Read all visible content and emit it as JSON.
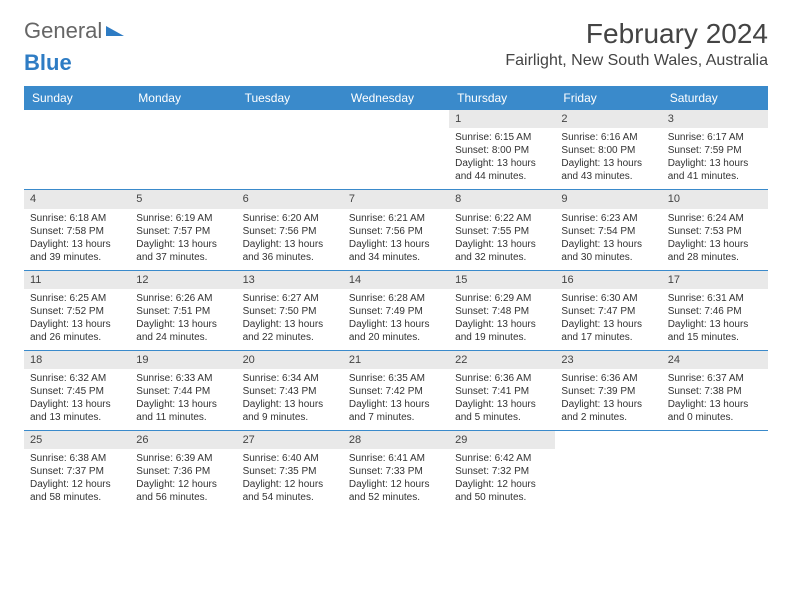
{
  "logo": {
    "text1": "General",
    "text2": "Blue"
  },
  "title": "February 2024",
  "location": "Fairlight, New South Wales, Australia",
  "colors": {
    "header_bg": "#3a8acb",
    "header_text": "#ffffff",
    "daynum_bg": "#e9e9e9",
    "rule": "#3a8acb",
    "logo_gray": "#666666",
    "logo_blue": "#2e7cc4",
    "text": "#333333"
  },
  "typography": {
    "title_fontsize": 28,
    "location_fontsize": 16,
    "dayheader_fontsize": 12,
    "cell_fontsize": 10
  },
  "day_labels": [
    "Sunday",
    "Monday",
    "Tuesday",
    "Wednesday",
    "Thursday",
    "Friday",
    "Saturday"
  ],
  "weeks": [
    [
      {
        "empty": true
      },
      {
        "empty": true
      },
      {
        "empty": true
      },
      {
        "empty": true
      },
      {
        "d": "1",
        "sr": "6:15 AM",
        "ss": "8:00 PM",
        "dl": "13 hours and 44 minutes."
      },
      {
        "d": "2",
        "sr": "6:16 AM",
        "ss": "8:00 PM",
        "dl": "13 hours and 43 minutes."
      },
      {
        "d": "3",
        "sr": "6:17 AM",
        "ss": "7:59 PM",
        "dl": "13 hours and 41 minutes."
      }
    ],
    [
      {
        "d": "4",
        "sr": "6:18 AM",
        "ss": "7:58 PM",
        "dl": "13 hours and 39 minutes."
      },
      {
        "d": "5",
        "sr": "6:19 AM",
        "ss": "7:57 PM",
        "dl": "13 hours and 37 minutes."
      },
      {
        "d": "6",
        "sr": "6:20 AM",
        "ss": "7:56 PM",
        "dl": "13 hours and 36 minutes."
      },
      {
        "d": "7",
        "sr": "6:21 AM",
        "ss": "7:56 PM",
        "dl": "13 hours and 34 minutes."
      },
      {
        "d": "8",
        "sr": "6:22 AM",
        "ss": "7:55 PM",
        "dl": "13 hours and 32 minutes."
      },
      {
        "d": "9",
        "sr": "6:23 AM",
        "ss": "7:54 PM",
        "dl": "13 hours and 30 minutes."
      },
      {
        "d": "10",
        "sr": "6:24 AM",
        "ss": "7:53 PM",
        "dl": "13 hours and 28 minutes."
      }
    ],
    [
      {
        "d": "11",
        "sr": "6:25 AM",
        "ss": "7:52 PM",
        "dl": "13 hours and 26 minutes."
      },
      {
        "d": "12",
        "sr": "6:26 AM",
        "ss": "7:51 PM",
        "dl": "13 hours and 24 minutes."
      },
      {
        "d": "13",
        "sr": "6:27 AM",
        "ss": "7:50 PM",
        "dl": "13 hours and 22 minutes."
      },
      {
        "d": "14",
        "sr": "6:28 AM",
        "ss": "7:49 PM",
        "dl": "13 hours and 20 minutes."
      },
      {
        "d": "15",
        "sr": "6:29 AM",
        "ss": "7:48 PM",
        "dl": "13 hours and 19 minutes."
      },
      {
        "d": "16",
        "sr": "6:30 AM",
        "ss": "7:47 PM",
        "dl": "13 hours and 17 minutes."
      },
      {
        "d": "17",
        "sr": "6:31 AM",
        "ss": "7:46 PM",
        "dl": "13 hours and 15 minutes."
      }
    ],
    [
      {
        "d": "18",
        "sr": "6:32 AM",
        "ss": "7:45 PM",
        "dl": "13 hours and 13 minutes."
      },
      {
        "d": "19",
        "sr": "6:33 AM",
        "ss": "7:44 PM",
        "dl": "13 hours and 11 minutes."
      },
      {
        "d": "20",
        "sr": "6:34 AM",
        "ss": "7:43 PM",
        "dl": "13 hours and 9 minutes."
      },
      {
        "d": "21",
        "sr": "6:35 AM",
        "ss": "7:42 PM",
        "dl": "13 hours and 7 minutes."
      },
      {
        "d": "22",
        "sr": "6:36 AM",
        "ss": "7:41 PM",
        "dl": "13 hours and 5 minutes."
      },
      {
        "d": "23",
        "sr": "6:36 AM",
        "ss": "7:39 PM",
        "dl": "13 hours and 2 minutes."
      },
      {
        "d": "24",
        "sr": "6:37 AM",
        "ss": "7:38 PM",
        "dl": "13 hours and 0 minutes."
      }
    ],
    [
      {
        "d": "25",
        "sr": "6:38 AM",
        "ss": "7:37 PM",
        "dl": "12 hours and 58 minutes."
      },
      {
        "d": "26",
        "sr": "6:39 AM",
        "ss": "7:36 PM",
        "dl": "12 hours and 56 minutes."
      },
      {
        "d": "27",
        "sr": "6:40 AM",
        "ss": "7:35 PM",
        "dl": "12 hours and 54 minutes."
      },
      {
        "d": "28",
        "sr": "6:41 AM",
        "ss": "7:33 PM",
        "dl": "12 hours and 52 minutes."
      },
      {
        "d": "29",
        "sr": "6:42 AM",
        "ss": "7:32 PM",
        "dl": "12 hours and 50 minutes."
      },
      {
        "empty": true
      },
      {
        "empty": true
      }
    ]
  ],
  "labels": {
    "sunrise": "Sunrise:",
    "sunset": "Sunset:",
    "daylight": "Daylight:"
  }
}
